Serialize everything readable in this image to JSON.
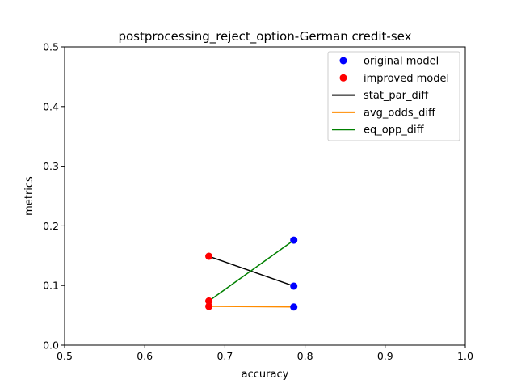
{
  "chart_data": {
    "type": "line",
    "title": "postprocessing_reject_option-German credit-sex",
    "xlabel": "accuracy",
    "ylabel": "metrics",
    "xlim": [
      0.5,
      1.0
    ],
    "ylim": [
      0.0,
      0.5
    ],
    "xticks": [
      "0.5",
      "0.6",
      "0.7",
      "0.8",
      "0.9",
      "1.0"
    ],
    "yticks": [
      "0.0",
      "0.1",
      "0.2",
      "0.3",
      "0.4",
      "0.5"
    ],
    "grid": false,
    "legend_position": "top-right",
    "point_series": [
      {
        "name": "original model",
        "color": "#0000ff",
        "points": [
          {
            "x": 0.786,
            "y": 0.099
          },
          {
            "x": 0.786,
            "y": 0.064
          },
          {
            "x": 0.786,
            "y": 0.176
          }
        ]
      },
      {
        "name": "improved model",
        "color": "#ff0000",
        "points": [
          {
            "x": 0.68,
            "y": 0.149
          },
          {
            "x": 0.68,
            "y": 0.065
          },
          {
            "x": 0.68,
            "y": 0.074
          }
        ]
      }
    ],
    "series": [
      {
        "name": "stat_par_diff",
        "color": "#000000",
        "x": [
          0.786,
          0.68
        ],
        "y": [
          0.099,
          0.149
        ]
      },
      {
        "name": "avg_odds_diff",
        "color": "#ff8c00",
        "x": [
          0.786,
          0.68
        ],
        "y": [
          0.064,
          0.065
        ]
      },
      {
        "name": "eq_opp_diff",
        "color": "#008000",
        "x": [
          0.786,
          0.68
        ],
        "y": [
          0.176,
          0.074
        ]
      }
    ]
  }
}
